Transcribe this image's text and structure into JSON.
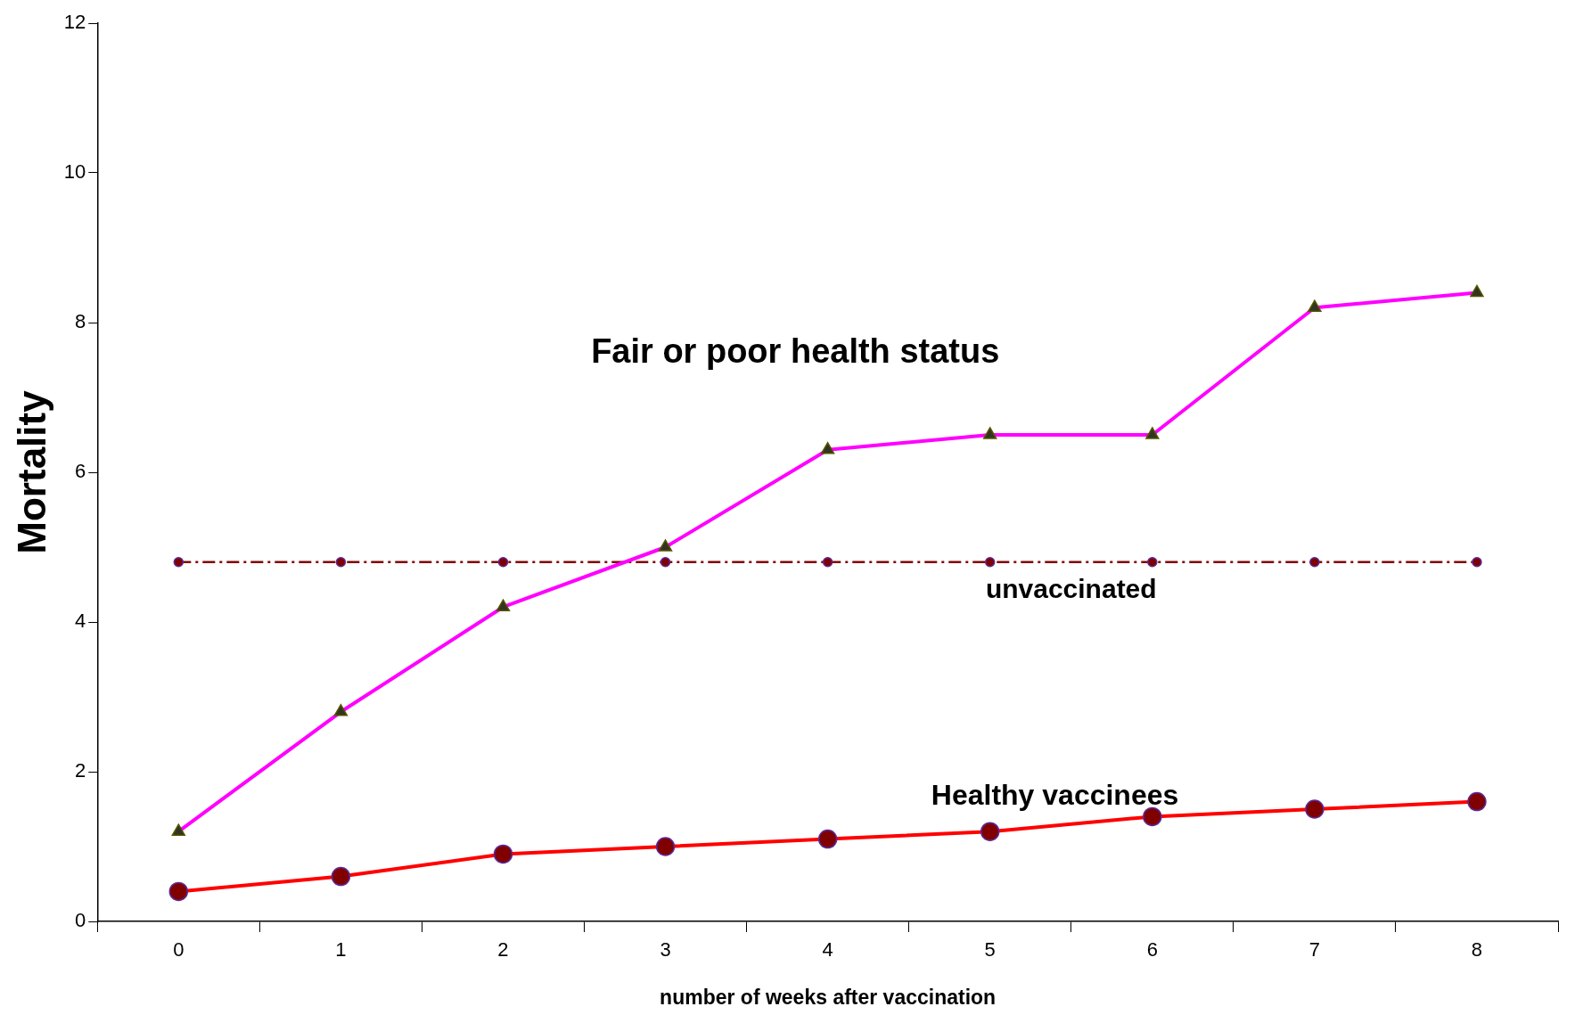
{
  "chart_data": {
    "type": "line",
    "xlabel": "number of weeks after vaccination",
    "ylabel": "Mortality",
    "categories": [
      "0",
      "1",
      "2",
      "3",
      "4",
      "5",
      "6",
      "7",
      "8"
    ],
    "series": [
      {
        "name": "Fair or poor health status",
        "color": "#ff00ff",
        "marker": "triangle",
        "line_style": "solid",
        "values": [
          1.2,
          2.8,
          4.2,
          5.0,
          6.3,
          6.5,
          6.5,
          8.2,
          8.4
        ]
      },
      {
        "name": "unvaccinated",
        "color": "#800000",
        "marker": "circle",
        "line_style": "dashed",
        "values": [
          4.8,
          4.8,
          4.8,
          4.8,
          4.8,
          4.8,
          4.8,
          4.8,
          4.8
        ]
      },
      {
        "name": "Healthy vaccinees",
        "color": "#ff0000",
        "marker": "circle",
        "line_style": "solid",
        "values": [
          0.4,
          0.6,
          0.9,
          1.0,
          1.1,
          1.2,
          1.4,
          1.5,
          1.6
        ]
      }
    ],
    "ylim": [
      0,
      12
    ],
    "yticks": [
      0,
      2,
      4,
      6,
      8,
      10,
      12
    ],
    "grid": false,
    "legend": false
  }
}
